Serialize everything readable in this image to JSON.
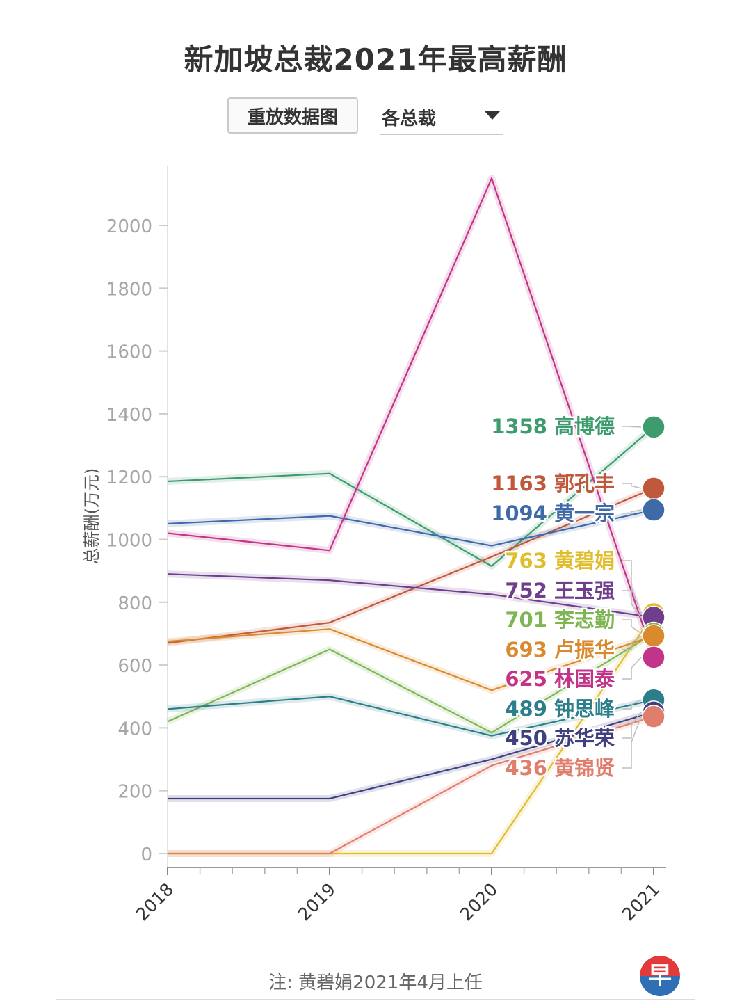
{
  "header": {
    "title": "新加坡总裁2021年最高薪酬",
    "replay_label": "重放数据图",
    "dropdown_value": "各总裁"
  },
  "footer": {
    "note": "注: 黄碧娟2021年4月上任",
    "logo_char": "早"
  },
  "chart_data": {
    "type": "line",
    "title": "新加坡总裁2021年最高薪酬",
    "xlabel": "",
    "ylabel": "总薪酬(万元)",
    "categories": [
      "2018",
      "2019",
      "2020",
      "2021"
    ],
    "yticks": [
      0,
      200,
      400,
      600,
      800,
      1000,
      1200,
      1400,
      1600,
      1800,
      2000
    ],
    "ylim": [
      0,
      2200
    ],
    "grid": false,
    "series": [
      {
        "name": "高博德",
        "color": "#3d9b6e",
        "values": [
          1185,
          1210,
          915,
          1358
        ],
        "label_value": "1358"
      },
      {
        "name": "郭孔丰",
        "color": "#c0583c",
        "values": [
          670,
          735,
          945,
          1163
        ],
        "label_value": "1163"
      },
      {
        "name": "黄一宗",
        "color": "#3f6aa8",
        "values": [
          1050,
          1075,
          980,
          1094
        ],
        "label_value": "1094"
      },
      {
        "name": "黄碧娟",
        "color": "#e0bd2a",
        "values": [
          0,
          0,
          0,
          763
        ],
        "label_value": "763"
      },
      {
        "name": "王玉强",
        "color": "#6f3f8c",
        "values": [
          890,
          870,
          825,
          752
        ],
        "label_value": "752"
      },
      {
        "name": "李志勤",
        "color": "#7fb653",
        "values": [
          420,
          650,
          385,
          701
        ],
        "label_value": "701"
      },
      {
        "name": "卢振华",
        "color": "#d98a2c",
        "values": [
          675,
          715,
          520,
          693
        ],
        "label_value": "693"
      },
      {
        "name": "林国泰",
        "color": "#c2348a",
        "values": [
          1020,
          965,
          2150,
          625
        ],
        "label_value": "625"
      },
      {
        "name": "钟思峰",
        "color": "#2c7f8a",
        "values": [
          460,
          500,
          375,
          489
        ],
        "label_value": "489"
      },
      {
        "name": "苏华荣",
        "color": "#40407f",
        "values": [
          175,
          175,
          300,
          450
        ],
        "label_value": "450"
      },
      {
        "name": "黄锦贤",
        "color": "#e07e6e",
        "values": [
          0,
          0,
          280,
          436
        ],
        "label_value": "436"
      }
    ]
  }
}
